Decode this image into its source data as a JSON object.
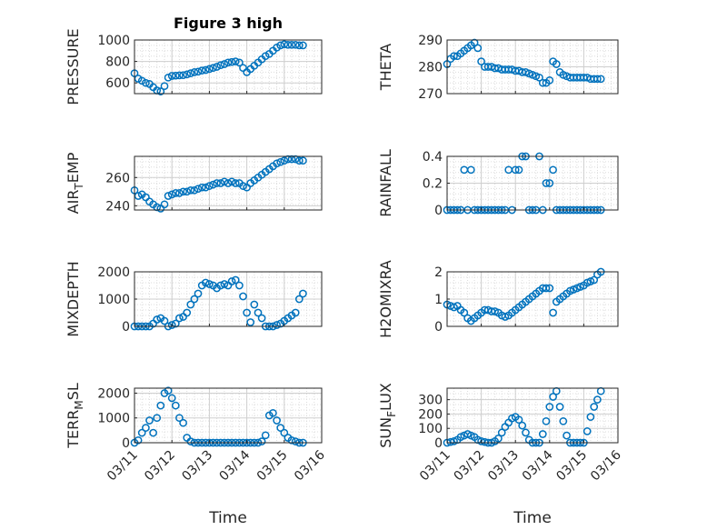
{
  "chart_data": [
    {
      "type": "scatter",
      "title": "Figure 3 high",
      "ylabel": "PRESSURE",
      "xlabel": "",
      "ylim": [
        500,
        1000
      ],
      "yticks": [
        600,
        800,
        1000
      ],
      "xlim": [
        0,
        5
      ],
      "xticks": [],
      "grid": true,
      "x": [
        0,
        0.1,
        0.2,
        0.3,
        0.4,
        0.5,
        0.6,
        0.7,
        0.8,
        0.9,
        1.0,
        1.1,
        1.2,
        1.3,
        1.4,
        1.5,
        1.6,
        1.7,
        1.8,
        1.9,
        2.0,
        2.1,
        2.2,
        2.3,
        2.4,
        2.5,
        2.6,
        2.7,
        2.8,
        2.9,
        3.0,
        3.1,
        3.2,
        3.3,
        3.4,
        3.5,
        3.6,
        3.7,
        3.8,
        3.9,
        4.0,
        4.1,
        4.2,
        4.3,
        4.4,
        4.5
      ],
      "y": [
        690,
        640,
        620,
        600,
        590,
        560,
        530,
        520,
        570,
        650,
        665,
        668,
        670,
        672,
        680,
        690,
        700,
        705,
        715,
        720,
        730,
        740,
        750,
        765,
        775,
        790,
        795,
        800,
        790,
        740,
        700,
        730,
        760,
        790,
        820,
        850,
        870,
        900,
        930,
        950,
        960,
        955,
        955,
        955,
        950,
        950
      ]
    },
    {
      "type": "scatter",
      "ylabel": "THETA",
      "xlabel": "",
      "ylim": [
        270,
        290
      ],
      "yticks": [
        270,
        280,
        290
      ],
      "xlim": [
        0,
        5
      ],
      "xticks": [],
      "grid": true,
      "x": [
        0,
        0.1,
        0.2,
        0.3,
        0.4,
        0.5,
        0.6,
        0.7,
        0.8,
        0.9,
        1.0,
        1.1,
        1.2,
        1.3,
        1.4,
        1.5,
        1.6,
        1.7,
        1.8,
        1.9,
        2.0,
        2.1,
        2.2,
        2.3,
        2.4,
        2.5,
        2.6,
        2.7,
        2.8,
        2.9,
        3.0,
        3.1,
        3.2,
        3.3,
        3.4,
        3.5,
        3.6,
        3.7,
        3.8,
        3.9,
        4.0,
        4.1,
        4.2,
        4.3,
        4.4,
        4.5
      ],
      "y": [
        281,
        283,
        284,
        284,
        285,
        286,
        287,
        288,
        289,
        287,
        282,
        280,
        280,
        280,
        279.5,
        279.5,
        279,
        279,
        279,
        279,
        278.5,
        278.5,
        278,
        278,
        277.5,
        277,
        276.5,
        276,
        274,
        274,
        275,
        282,
        281,
        278,
        277,
        276.5,
        276,
        276,
        276,
        276,
        276,
        276,
        275.5,
        275.5,
        275.5,
        275.5
      ]
    },
    {
      "type": "scatter",
      "ylabel": "AIR_TEMP",
      "xlabel": "",
      "ylim": [
        237,
        275
      ],
      "yticks": [
        240,
        260
      ],
      "xlim": [
        0,
        5
      ],
      "xticks": [],
      "grid": true,
      "x": [
        0,
        0.1,
        0.2,
        0.3,
        0.4,
        0.5,
        0.6,
        0.7,
        0.8,
        0.9,
        1.0,
        1.1,
        1.2,
        1.3,
        1.4,
        1.5,
        1.6,
        1.7,
        1.8,
        1.9,
        2.0,
        2.1,
        2.2,
        2.3,
        2.4,
        2.5,
        2.6,
        2.7,
        2.8,
        2.9,
        3.0,
        3.1,
        3.2,
        3.3,
        3.4,
        3.5,
        3.6,
        3.7,
        3.8,
        3.9,
        4.0,
        4.1,
        4.2,
        4.3,
        4.4,
        4.5
      ],
      "y": [
        251,
        247,
        248,
        246,
        243,
        241,
        239,
        238,
        241,
        247,
        248,
        249,
        249,
        250,
        250,
        251,
        251,
        252,
        253,
        253,
        254,
        255,
        256,
        256,
        257,
        256,
        257,
        256,
        256,
        254,
        253,
        256,
        258,
        260,
        262,
        264,
        266,
        268,
        270,
        271,
        272,
        273,
        273,
        273,
        272,
        272
      ]
    },
    {
      "type": "scatter",
      "ylabel": "RAINFALL",
      "xlabel": "",
      "ylim": [
        0,
        0.4
      ],
      "yticks": [
        0,
        0.2,
        0.4
      ],
      "xlim": [
        0,
        5
      ],
      "xticks": [],
      "grid": true,
      "x": [
        0,
        0.1,
        0.2,
        0.3,
        0.4,
        0.5,
        0.6,
        0.7,
        0.8,
        0.9,
        1.0,
        1.1,
        1.2,
        1.3,
        1.4,
        1.5,
        1.6,
        1.7,
        1.8,
        1.9,
        2.0,
        2.1,
        2.2,
        2.3,
        2.4,
        2.5,
        2.6,
        2.7,
        2.8,
        2.9,
        3.0,
        3.1,
        3.2,
        3.3,
        3.4,
        3.5,
        3.6,
        3.7,
        3.8,
        3.9,
        4.0,
        4.1,
        4.2,
        4.3,
        4.4,
        4.5
      ],
      "y": [
        0,
        0,
        0,
        0,
        0,
        0.3,
        0,
        0.3,
        0,
        0,
        0,
        0,
        0,
        0,
        0,
        0,
        0,
        0,
        0.3,
        0,
        0.3,
        0.3,
        0.4,
        0.4,
        0,
        0,
        0,
        0.4,
        0,
        0.2,
        0.2,
        0.3,
        0,
        0,
        0,
        0,
        0,
        0,
        0,
        0,
        0,
        0,
        0,
        0,
        0,
        0
      ]
    },
    {
      "type": "scatter",
      "ylabel": "MIXDEPTH",
      "xlabel": "",
      "ylim": [
        0,
        2000
      ],
      "yticks": [
        0,
        1000,
        2000
      ],
      "xlim": [
        0,
        5
      ],
      "xticks": [],
      "grid": true,
      "x": [
        0,
        0.1,
        0.2,
        0.3,
        0.4,
        0.5,
        0.6,
        0.7,
        0.8,
        0.9,
        1.0,
        1.1,
        1.2,
        1.3,
        1.4,
        1.5,
        1.6,
        1.7,
        1.8,
        1.9,
        2.0,
        2.1,
        2.2,
        2.3,
        2.4,
        2.5,
        2.6,
        2.7,
        2.8,
        2.9,
        3.0,
        3.1,
        3.2,
        3.3,
        3.4,
        3.5,
        3.6,
        3.7,
        3.8,
        3.9,
        4.0,
        4.1,
        4.2,
        4.3,
        4.4,
        4.5
      ],
      "y": [
        0,
        0,
        0,
        0,
        0,
        100,
        250,
        300,
        200,
        0,
        50,
        100,
        300,
        350,
        500,
        800,
        1000,
        1200,
        1500,
        1600,
        1550,
        1500,
        1400,
        1500,
        1550,
        1500,
        1650,
        1700,
        1500,
        1100,
        500,
        150,
        800,
        500,
        300,
        0,
        0,
        0,
        50,
        100,
        200,
        300,
        400,
        500,
        1000,
        1200
      ]
    },
    {
      "type": "scatter",
      "ylabel": "H2OMIXRA",
      "xlabel": "",
      "ylim": [
        0,
        2
      ],
      "yticks": [
        0,
        1,
        2
      ],
      "xlim": [
        0,
        5
      ],
      "xticks": [],
      "grid": true,
      "x": [
        0,
        0.1,
        0.2,
        0.3,
        0.4,
        0.5,
        0.6,
        0.7,
        0.8,
        0.9,
        1.0,
        1.1,
        1.2,
        1.3,
        1.4,
        1.5,
        1.6,
        1.7,
        1.8,
        1.9,
        2.0,
        2.1,
        2.2,
        2.3,
        2.4,
        2.5,
        2.6,
        2.7,
        2.8,
        2.9,
        3.0,
        3.1,
        3.2,
        3.3,
        3.4,
        3.5,
        3.6,
        3.7,
        3.8,
        3.9,
        4.0,
        4.1,
        4.2,
        4.3,
        4.4,
        4.5
      ],
      "y": [
        0.8,
        0.75,
        0.7,
        0.75,
        0.6,
        0.5,
        0.3,
        0.2,
        0.3,
        0.4,
        0.5,
        0.6,
        0.6,
        0.55,
        0.55,
        0.5,
        0.4,
        0.35,
        0.4,
        0.5,
        0.6,
        0.7,
        0.8,
        0.9,
        1.0,
        1.1,
        1.2,
        1.3,
        1.4,
        1.4,
        1.4,
        0.5,
        0.9,
        1.0,
        1.1,
        1.2,
        1.3,
        1.35,
        1.4,
        1.45,
        1.5,
        1.6,
        1.65,
        1.7,
        1.9,
        2.0
      ]
    },
    {
      "type": "scatter",
      "ylabel": "TERR_MSL",
      "xlabel": "Time",
      "ylim": [
        0,
        2200
      ],
      "yticks": [
        0,
        1000,
        2000
      ],
      "xlim": [
        0,
        5
      ],
      "xticks": [
        "03/11",
        "03/12",
        "03/13",
        "03/14",
        "03/15",
        "03/16"
      ],
      "grid": true,
      "x": [
        0,
        0.1,
        0.2,
        0.3,
        0.4,
        0.5,
        0.6,
        0.7,
        0.8,
        0.9,
        1.0,
        1.1,
        1.2,
        1.3,
        1.4,
        1.5,
        1.6,
        1.7,
        1.8,
        1.9,
        2.0,
        2.1,
        2.2,
        2.3,
        2.4,
        2.5,
        2.6,
        2.7,
        2.8,
        2.9,
        3.0,
        3.1,
        3.2,
        3.3,
        3.4,
        3.5,
        3.6,
        3.7,
        3.8,
        3.9,
        4.0,
        4.1,
        4.2,
        4.3,
        4.4,
        4.5
      ],
      "y": [
        0,
        100,
        400,
        600,
        900,
        400,
        1000,
        1500,
        2000,
        2100,
        1800,
        1500,
        1000,
        800,
        200,
        50,
        0,
        0,
        0,
        0,
        0,
        0,
        0,
        0,
        0,
        0,
        0,
        0,
        0,
        0,
        0,
        0,
        0,
        0,
        50,
        300,
        1100,
        1200,
        900,
        600,
        400,
        200,
        100,
        50,
        0,
        0
      ]
    },
    {
      "type": "scatter",
      "ylabel": "SUN_FLUX",
      "xlabel": "Time",
      "ylim": [
        0,
        380
      ],
      "yticks": [
        0,
        100,
        200,
        300
      ],
      "xlim": [
        0,
        5
      ],
      "xticks": [
        "03/11",
        "03/12",
        "03/13",
        "03/14",
        "03/15",
        "03/16"
      ],
      "grid": true,
      "x": [
        0,
        0.1,
        0.2,
        0.3,
        0.4,
        0.5,
        0.6,
        0.7,
        0.8,
        0.9,
        1.0,
        1.1,
        1.2,
        1.3,
        1.4,
        1.5,
        1.6,
        1.7,
        1.8,
        1.9,
        2.0,
        2.1,
        2.2,
        2.3,
        2.4,
        2.5,
        2.6,
        2.7,
        2.8,
        2.9,
        3.0,
        3.1,
        3.2,
        3.3,
        3.4,
        3.5,
        3.6,
        3.7,
        3.8,
        3.9,
        4.0,
        4.1,
        4.2,
        4.3,
        4.4,
        4.5
      ],
      "y": [
        0,
        5,
        10,
        20,
        40,
        50,
        60,
        50,
        40,
        20,
        10,
        5,
        0,
        0,
        10,
        30,
        70,
        110,
        140,
        170,
        180,
        160,
        120,
        70,
        20,
        0,
        0,
        0,
        60,
        150,
        250,
        320,
        360,
        250,
        150,
        50,
        0,
        0,
        0,
        0,
        0,
        80,
        180,
        250,
        300,
        360
      ]
    }
  ],
  "colors": {
    "marker": "#0072BD",
    "axis": "#262626",
    "grid": "#dcdcdc"
  }
}
